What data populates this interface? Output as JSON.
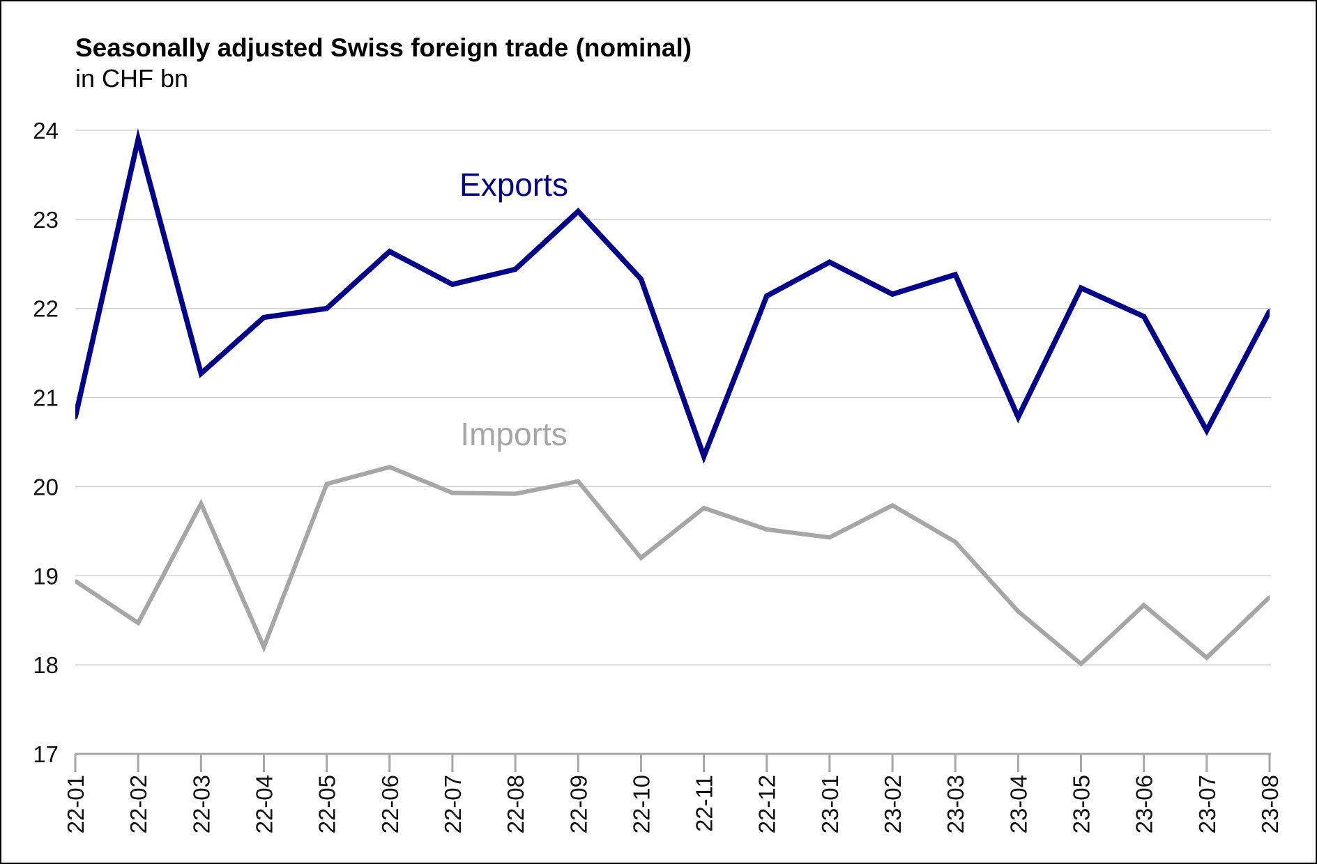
{
  "chart_data": {
    "type": "line",
    "title": "Seasonally adjusted Swiss foreign trade (nominal)",
    "subtitle": "in CHF bn",
    "categories": [
      "22-01",
      "22-02",
      "22-03",
      "22-04",
      "22-05",
      "22-06",
      "22-07",
      "22-08",
      "22-09",
      "22-10",
      "22-11",
      "22-12",
      "23-01",
      "23-02",
      "23-03",
      "23-04",
      "23-05",
      "23-06",
      "23-07",
      "23-08"
    ],
    "series": [
      {
        "name": "Exports",
        "color": "#00008b",
        "values": [
          20.78,
          23.9,
          21.27,
          21.9,
          22.0,
          22.64,
          22.27,
          22.44,
          23.09,
          22.33,
          20.34,
          22.14,
          22.52,
          22.16,
          22.38,
          20.78,
          22.23,
          21.91,
          20.63,
          21.97
        ]
      },
      {
        "name": "Imports",
        "color": "#a6a6a6",
        "values": [
          18.94,
          18.47,
          19.81,
          18.2,
          20.03,
          20.22,
          19.93,
          19.92,
          20.06,
          19.2,
          19.76,
          19.52,
          19.43,
          19.79,
          19.38,
          18.6,
          18.01,
          18.67,
          18.08,
          18.76
        ]
      }
    ],
    "ylim": [
      17,
      24
    ],
    "yticks": [
      17,
      18,
      19,
      20,
      21,
      22,
      23,
      24
    ],
    "grid": true,
    "legend": "inline-labels"
  }
}
